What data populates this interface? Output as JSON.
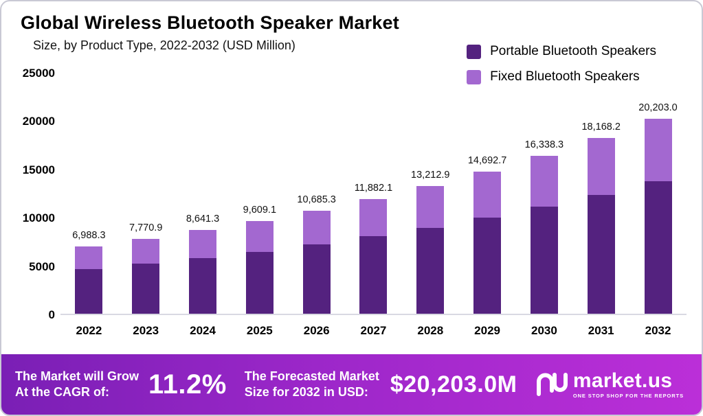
{
  "header": {
    "title": "Global Wireless Bluetooth Speaker Market",
    "subtitle": "Size, by Product Type, 2022-2032 (USD Million)"
  },
  "legend": {
    "items": [
      {
        "label": "Portable Bluetooth Speakers",
        "color": "#54227f"
      },
      {
        "label": "Fixed Bluetooth Speakers",
        "color": "#a368d0"
      }
    ]
  },
  "chart_data": {
    "type": "bar",
    "stacked": true,
    "title": "Global Wireless Bluetooth Speaker Market",
    "subtitle": "Size, by Product Type, 2022-2032 (USD Million)",
    "categories": [
      "2022",
      "2023",
      "2024",
      "2025",
      "2026",
      "2027",
      "2028",
      "2029",
      "2030",
      "2031",
      "2032"
    ],
    "series": [
      {
        "name": "Portable Bluetooth Speakers",
        "color": "#54227f",
        "values": [
          4650,
          5200,
          5750,
          6400,
          7150,
          8000,
          8900,
          9950,
          11050,
          12300,
          13700
        ]
      },
      {
        "name": "Fixed Bluetooth Speakers",
        "color": "#a368d0",
        "values": [
          2338.3,
          2570.9,
          2891.3,
          3209.1,
          3535.3,
          3882.1,
          4312.9,
          4742.7,
          5288.3,
          5868.2,
          6503.0
        ]
      }
    ],
    "totals": [
      6988.3,
      7770.9,
      8641.3,
      9609.1,
      10685.3,
      11882.1,
      13212.9,
      14692.7,
      16338.3,
      18168.2,
      20203.0
    ],
    "total_labels": [
      "6,988.3",
      "7,770.9",
      "8,641.3",
      "9,609.1",
      "10,685.3",
      "11,882.1",
      "13,212.9",
      "14,692.7",
      "16,338.3",
      "18,168.2",
      "20,203.0"
    ],
    "xlabel": "",
    "ylabel": "",
    "ylim": [
      0,
      25000
    ],
    "yticks": [
      0,
      5000,
      10000,
      15000,
      20000,
      25000
    ],
    "ytick_labels": [
      "0",
      "5000",
      "10000",
      "15000",
      "20000",
      "25000"
    ],
    "grid": false,
    "legend_position": "top-right"
  },
  "banner": {
    "cagr_line1": "The Market will Grow",
    "cagr_line2": "At the CAGR of:",
    "cagr_value": "11.2%",
    "forecast_line1": "The Forecasted Market",
    "forecast_line2": "Size for 2032 in USD:",
    "forecast_value": "$20,203.0M",
    "brand": "market.us",
    "brand_tagline": "ONE STOP SHOP FOR THE REPORTS"
  }
}
